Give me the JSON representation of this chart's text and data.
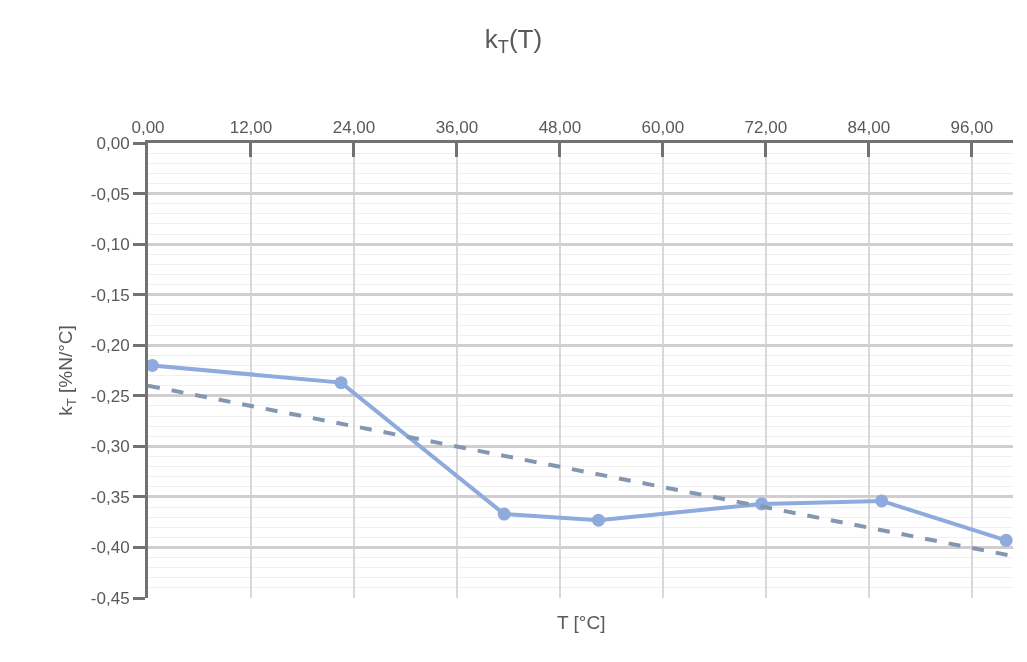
{
  "chart_data": {
    "type": "line",
    "title": "k$_{T}$(T)",
    "xlabel": "T [°C]",
    "ylabel": "k$_{T}$ [%N/°C]",
    "series": [
      {
        "color": "#8faadc",
        "marker": "circle",
        "line_style": "solid",
        "x": [
          0.5,
          22.5,
          41.5,
          52.5,
          71.5,
          85.5,
          100
        ],
        "values": [
          -0.22,
          -0.237,
          -0.367,
          -0.373,
          -0.357,
          -0.354,
          -0.393
        ]
      },
      {
        "color": "#8497b0",
        "marker": "none",
        "line_style": "dashed",
        "x": [
          0,
          100.5
        ],
        "values": [
          -0.24,
          -0.408
        ]
      }
    ],
    "xlim": [
      0,
      100.8
    ],
    "ylim": [
      -0.45,
      0
    ],
    "xticks": [
      {
        "value": 0,
        "label": "0,00"
      },
      {
        "value": 12,
        "label": "12,00"
      },
      {
        "value": 24,
        "label": "24,00"
      },
      {
        "value": 36,
        "label": "36,00"
      },
      {
        "value": 48,
        "label": "48,00"
      },
      {
        "value": 60,
        "label": "60,00"
      },
      {
        "value": 72,
        "label": "72,00"
      },
      {
        "value": 84,
        "label": "84,00"
      },
      {
        "value": 96,
        "label": "96,00"
      }
    ],
    "yticks": [
      {
        "value": 0,
        "label": "0,00"
      },
      {
        "value": -0.05,
        "label": "-0,05"
      },
      {
        "value": -0.1,
        "label": "-0,10"
      },
      {
        "value": -0.15,
        "label": "-0,15"
      },
      {
        "value": -0.2,
        "label": "-0,20"
      },
      {
        "value": -0.25,
        "label": "-0,25"
      },
      {
        "value": -0.3,
        "label": "-0,30"
      },
      {
        "value": -0.35,
        "label": "-0,35"
      },
      {
        "value": -0.4,
        "label": "-0,40"
      },
      {
        "value": -0.45,
        "label": "-0,45"
      }
    ],
    "grid": true
  }
}
